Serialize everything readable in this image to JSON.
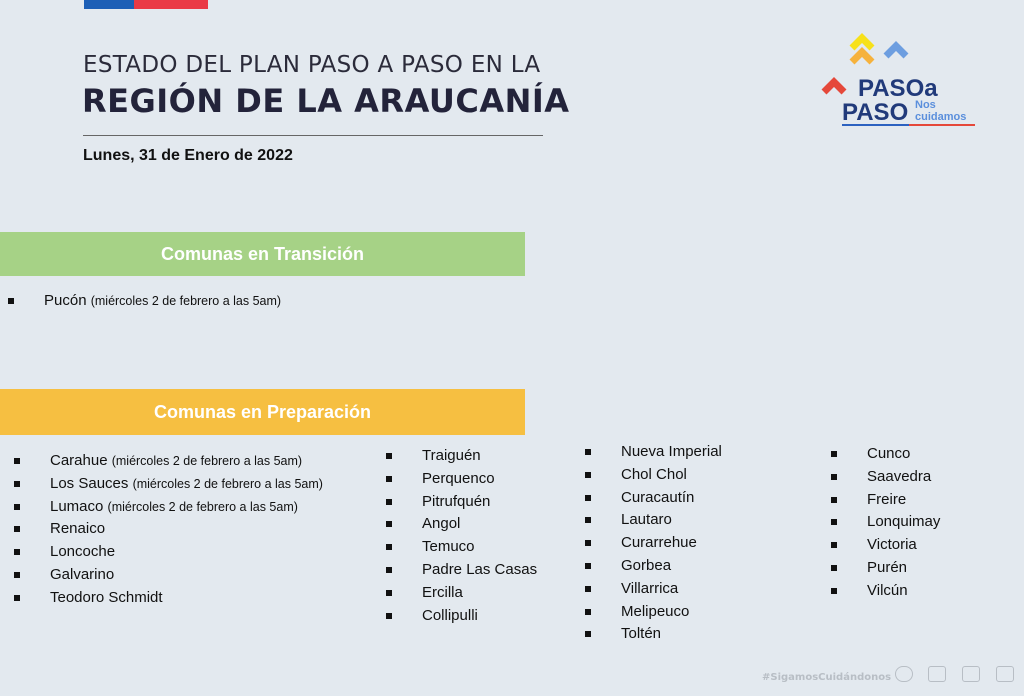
{
  "header": {
    "title_line1": "ESTADO DEL PLAN PASO A PASO EN LA",
    "title_line2": "REGIÓN DE LA ARAUCANÍA",
    "date": "Lunes, 31 de Enero de 2022"
  },
  "logo": {
    "text_line1": "PASOa",
    "text_line2": "PASO",
    "tagline1": "Nos",
    "tagline2": "cuidamos"
  },
  "colors": {
    "transition": "#a6d286",
    "preparation": "#f6bf41",
    "background": "#e3e9ef"
  },
  "transition": {
    "heading": "Comunas en Transición",
    "items": [
      {
        "name": "Pucón",
        "note": "(miércoles 2 de febrero a las 5am)"
      }
    ]
  },
  "preparation": {
    "heading": "Comunas en Preparación",
    "columns": [
      [
        {
          "name": "Carahue",
          "note": "(miércoles 2 de febrero a las 5am)"
        },
        {
          "name": "Los Sauces",
          "note": "(miércoles 2 de febrero a las 5am)"
        },
        {
          "name": "Lumaco",
          "note": "(miércoles 2 de febrero a las 5am)"
        },
        {
          "name": "Renaico"
        },
        {
          "name": "Loncoche"
        },
        {
          "name": "Galvarino"
        },
        {
          "name": "Teodoro Schmidt"
        }
      ],
      [
        {
          "name": "Traiguén"
        },
        {
          "name": "Perquenco"
        },
        {
          "name": "Pitrufquén"
        },
        {
          "name": "Angol"
        },
        {
          "name": "Temuco"
        },
        {
          "name": "Padre Las Casas"
        },
        {
          "name": "Ercilla"
        },
        {
          "name": "Collipulli"
        }
      ],
      [
        {
          "name": "Nueva Imperial"
        },
        {
          "name": "Chol Chol"
        },
        {
          "name": "Curacautín"
        },
        {
          "name": "Lautaro"
        },
        {
          "name": "Curarrehue"
        },
        {
          "name": "Gorbea"
        },
        {
          "name": "Villarrica"
        },
        {
          "name": "Melipeuco"
        },
        {
          "name": "Toltén"
        }
      ],
      [
        {
          "name": "Cunco"
        },
        {
          "name": "Saavedra"
        },
        {
          "name": "Freire"
        },
        {
          "name": "Lonquimay"
        },
        {
          "name": "Victoria"
        },
        {
          "name": "Purén"
        },
        {
          "name": "Vilcún"
        }
      ]
    ]
  },
  "footer": {
    "hashtag": "#SigamosCuidándonos"
  }
}
